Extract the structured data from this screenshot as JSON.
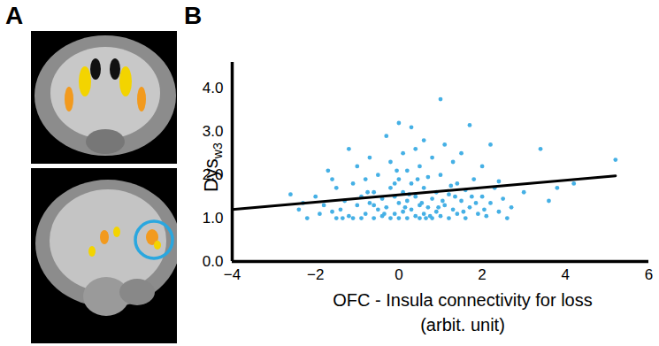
{
  "chart_data": {
    "type": "scatter",
    "panel_labels": [
      "A",
      "B"
    ],
    "x_label": [
      "OFC - Insula connectivity for loss",
      "(arbit. unit)"
    ],
    "y_label": "Dys",
    "y_label_subscript": "w3",
    "xlim": [
      -4,
      6
    ],
    "xticks": [
      -4,
      -2,
      0,
      2,
      4,
      6
    ],
    "ylim": [
      0,
      4.6
    ],
    "yticks": [
      0,
      1,
      2,
      3,
      4
    ],
    "color": "#45b0e5",
    "x": [
      -2.6,
      -2.4,
      -2.2,
      -2.0,
      -1.9,
      -1.8,
      -1.7,
      -1.6,
      -1.5,
      -1.5,
      -1.4,
      -1.3,
      -1.2,
      -1.2,
      -1.1,
      -1.0,
      -1.0,
      -0.9,
      -0.9,
      -0.8,
      -0.8,
      -0.7,
      -0.7,
      -0.6,
      -0.6,
      -0.5,
      -0.5,
      -0.4,
      -0.4,
      -0.3,
      -0.3,
      -0.2,
      -0.2,
      -0.2,
      -0.1,
      -0.1,
      0.0,
      0.0,
      0.0,
      0.0,
      0.1,
      0.1,
      0.1,
      0.2,
      0.2,
      0.2,
      0.3,
      0.3,
      0.3,
      0.4,
      0.4,
      0.4,
      0.5,
      0.5,
      0.5,
      0.6,
      0.6,
      0.6,
      0.7,
      0.7,
      0.8,
      0.8,
      0.8,
      0.9,
      0.9,
      1.0,
      1.0,
      1.0,
      1.1,
      1.1,
      1.2,
      1.2,
      1.3,
      1.3,
      1.4,
      1.4,
      1.5,
      1.5,
      1.6,
      1.6,
      1.7,
      1.7,
      1.8,
      1.9,
      2.0,
      2.0,
      2.1,
      2.2,
      2.2,
      2.3,
      2.4,
      2.5,
      2.6,
      -2.3,
      -1.6,
      -1.1,
      -0.6,
      -0.1,
      0.25,
      0.55,
      0.75,
      1.05,
      1.35,
      1.55,
      1.85,
      2.4,
      2.7,
      3.0,
      3.4,
      3.6,
      3.8,
      4.2,
      5.2,
      -0.35,
      0.15,
      0.45,
      0.95,
      -0.75,
      -1.35,
      1.75,
      2.05,
      -0.05,
      0.65,
      1.25
    ],
    "values": [
      1.55,
      1.2,
      1.0,
      1.5,
      1.1,
      1.3,
      2.1,
      1.9,
      1.0,
      1.7,
      1.2,
      1.4,
      2.6,
      1.05,
      1.8,
      1.3,
      2.2,
      1.0,
      1.5,
      1.1,
      1.9,
      1.35,
      2.4,
      1.0,
      1.6,
      1.2,
      2.0,
      1.05,
      1.45,
      2.9,
      1.25,
      1.0,
      1.7,
      2.3,
      1.1,
      1.5,
      3.2,
      1.0,
      1.35,
      1.9,
      1.15,
      2.5,
      1.6,
      1.0,
      1.4,
      2.1,
      3.1,
      1.2,
      1.8,
      1.05,
      2.6,
      1.5,
      1.0,
      1.3,
      2.2,
      1.1,
      1.7,
      2.8,
      1.25,
      1.95,
      1.0,
      1.45,
      2.4,
      1.15,
      1.6,
      3.75,
      1.05,
      2.0,
      1.3,
      2.7,
      1.0,
      1.55,
      1.2,
      2.3,
      1.1,
      1.8,
      1.4,
      2.5,
      1.0,
      1.65,
      3.15,
      1.25,
      1.9,
      1.1,
      1.5,
      2.2,
      1.05,
      2.7,
      1.35,
      1.7,
      1.15,
      1.45,
      1.0,
      1.35,
      1.15,
      1.0,
      1.3,
      1.8,
      1.55,
      1.35,
      1.05,
      1.4,
      1.5,
      1.15,
      1.35,
      1.85,
      1.25,
      1.6,
      2.6,
      1.4,
      1.7,
      1.8,
      2.35,
      1.1,
      1.25,
      1.9,
      1.25,
      1.6,
      1.0,
      1.5,
      1.2,
      2.1,
      1.0,
      1.75
    ],
    "trend": {
      "type": "line",
      "color": "#000000",
      "x": [
        -4,
        5.2
      ],
      "values": [
        1.2,
        1.98
      ]
    }
  }
}
